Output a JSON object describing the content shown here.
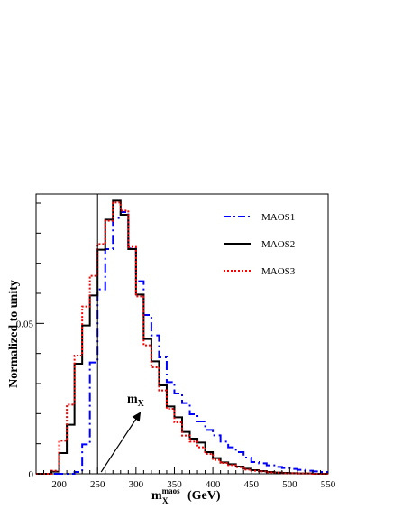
{
  "chart_data": {
    "type": "line",
    "step": true,
    "title": "",
    "xlabel": {
      "main": "m",
      "subscript": "X",
      "superscript": "maos",
      "unit": "(GeV)"
    },
    "ylabel": "Normalized to unity",
    "xlim": [
      170,
      550
    ],
    "ylim": [
      0,
      0.093
    ],
    "x_ticks": [
      {
        "value": 200,
        "label": "200"
      },
      {
        "value": 250,
        "label": "250"
      },
      {
        "value": 300,
        "label": "300"
      },
      {
        "value": 350,
        "label": "350"
      },
      {
        "value": 400,
        "label": "400"
      },
      {
        "value": 450,
        "label": "450"
      },
      {
        "value": 500,
        "label": "500"
      },
      {
        "value": 550,
        "label": "550"
      }
    ],
    "y_ticks": [
      {
        "value": 0,
        "label": "0"
      },
      {
        "value": 0.05,
        "label": "0.05"
      }
    ],
    "grid": false,
    "legend_position": "top-right",
    "bin_edges": [
      170,
      180,
      190,
      200,
      210,
      220,
      230,
      240,
      250,
      260,
      270,
      280,
      290,
      300,
      310,
      320,
      330,
      340,
      350,
      360,
      370,
      380,
      390,
      400,
      410,
      420,
      430,
      440,
      450,
      460,
      470,
      480,
      490,
      500,
      510,
      520,
      530,
      540,
      550
    ],
    "series": [
      {
        "name": "MAOS1",
        "color": "#0000ff",
        "dash": "dashdot",
        "values": [
          0,
          0,
          0,
          0,
          0,
          0.0006,
          0.0098,
          0.037,
          0.0613,
          0.0747,
          0.085,
          0.087,
          0.0749,
          0.064,
          0.0528,
          0.046,
          0.0387,
          0.0305,
          0.0267,
          0.0235,
          0.0198,
          0.0174,
          0.0146,
          0.0128,
          0.0107,
          0.0088,
          0.0072,
          0.0054,
          0.0039,
          0.0035,
          0.0028,
          0.0023,
          0.0019,
          0.0016,
          0.0013,
          0.001,
          0.0008,
          0.0006
        ]
      },
      {
        "name": "MAOS2",
        "color": "#000000",
        "dash": "solid",
        "values": [
          0,
          0,
          0.0007,
          0.0069,
          0.0163,
          0.0366,
          0.0493,
          0.0593,
          0.0745,
          0.0845,
          0.0908,
          0.0861,
          0.0747,
          0.0596,
          0.0448,
          0.0374,
          0.0294,
          0.0224,
          0.0188,
          0.0139,
          0.0117,
          0.0104,
          0.0072,
          0.0052,
          0.0038,
          0.0032,
          0.0024,
          0.0017,
          0.0012,
          0.0009,
          0.0006,
          0.0004,
          0.0003,
          0.0002,
          0.0001,
          0.0001,
          0,
          0
        ]
      },
      {
        "name": "MAOS3",
        "color": "#ff0000",
        "dash": "dotted",
        "values": [
          0,
          0,
          0.001,
          0.011,
          0.023,
          0.0393,
          0.0556,
          0.0658,
          0.0764,
          0.0841,
          0.0902,
          0.0875,
          0.0754,
          0.059,
          0.0427,
          0.0354,
          0.0277,
          0.0216,
          0.0171,
          0.0127,
          0.0107,
          0.0088,
          0.0066,
          0.0046,
          0.0036,
          0.0029,
          0.0022,
          0.0014,
          0.001,
          0.0008,
          0.0005,
          0.0004,
          0.0002,
          0.0002,
          0.0001,
          0.0001,
          0,
          0
        ]
      }
    ],
    "vertical_line": {
      "x": 250
    },
    "annotation": {
      "main": "m",
      "subscript": "X",
      "points_to_x": 250
    }
  }
}
